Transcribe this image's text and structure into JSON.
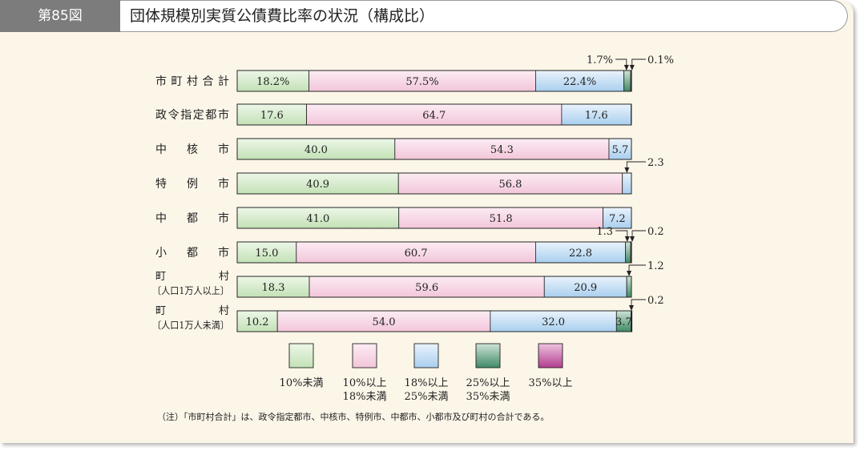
{
  "header": {
    "figure_number": "第85図",
    "title": "団体規模別実質公債費比率の状況（構成比）"
  },
  "note": "（注）「市町村合計」は、政令指定都市、中核市、特例市、中都市、小都市及び町村の合計である。",
  "colors": {
    "lt10": "#e6f3de",
    "10to18": "#fbe5ef",
    "18to25": "#e1eefa",
    "25to35": "#6e9e86",
    "ge35": "#b9549c",
    "border": "#222222"
  },
  "chart_data": {
    "type": "bar",
    "orientation": "horizontal",
    "stacked": true,
    "xlim": [
      0,
      100
    ],
    "legend_position": "bottom",
    "categories": [
      {
        "line1": "市町村合計",
        "line2": ""
      },
      {
        "line1": "政令指定都市",
        "line2": ""
      },
      {
        "line1": "中　核　市",
        "line2": ""
      },
      {
        "line1": "特　例　市",
        "line2": ""
      },
      {
        "line1": "中　都　市",
        "line2": ""
      },
      {
        "line1": "小　都　市",
        "line2": ""
      },
      {
        "line1": "町　　　村",
        "line2": "〔人口1万人以上〕"
      },
      {
        "line1": "町　　　村",
        "line2": "〔人口1万人未満〕"
      }
    ],
    "series": [
      {
        "name": "10%未満",
        "color_key": "lt10",
        "values": [
          18.2,
          17.6,
          40.0,
          40.9,
          41.0,
          15.0,
          18.3,
          10.2
        ],
        "labels": [
          "18.2%",
          "17.6",
          "40.0",
          "40.9",
          "41.0",
          "15.0",
          "18.3",
          "10.2"
        ]
      },
      {
        "name": "10%以上\n18%未満",
        "color_key": "10to18",
        "values": [
          57.5,
          64.7,
          54.3,
          56.8,
          51.8,
          60.7,
          59.6,
          54.0
        ],
        "labels": [
          "57.5%",
          "64.7",
          "54.3",
          "56.8",
          "51.8",
          "60.7",
          "59.6",
          "54.0"
        ]
      },
      {
        "name": "18%以上\n25%未満",
        "color_key": "18to25",
        "values": [
          22.4,
          17.6,
          5.7,
          2.3,
          7.2,
          22.8,
          20.9,
          32.0
        ],
        "labels": [
          "22.4%",
          "17.6",
          "5.7",
          "2.3",
          "7.2",
          "22.8",
          "20.9",
          "32.0"
        ]
      },
      {
        "name": "25%以上\n35%未満",
        "color_key": "25to35",
        "values": [
          1.7,
          0,
          0,
          0,
          0,
          1.3,
          1.2,
          3.7
        ],
        "labels": [
          "1.7%",
          "",
          "",
          "",
          "",
          "1.3",
          "1.2",
          "3.7"
        ]
      },
      {
        "name": "35%以上",
        "color_key": "ge35",
        "values": [
          0.1,
          0,
          0,
          0,
          0,
          0.2,
          0,
          0.2
        ],
        "labels": [
          "0.1%",
          "",
          "",
          "",
          "",
          "0.2",
          "",
          "0.2"
        ]
      }
    ]
  }
}
